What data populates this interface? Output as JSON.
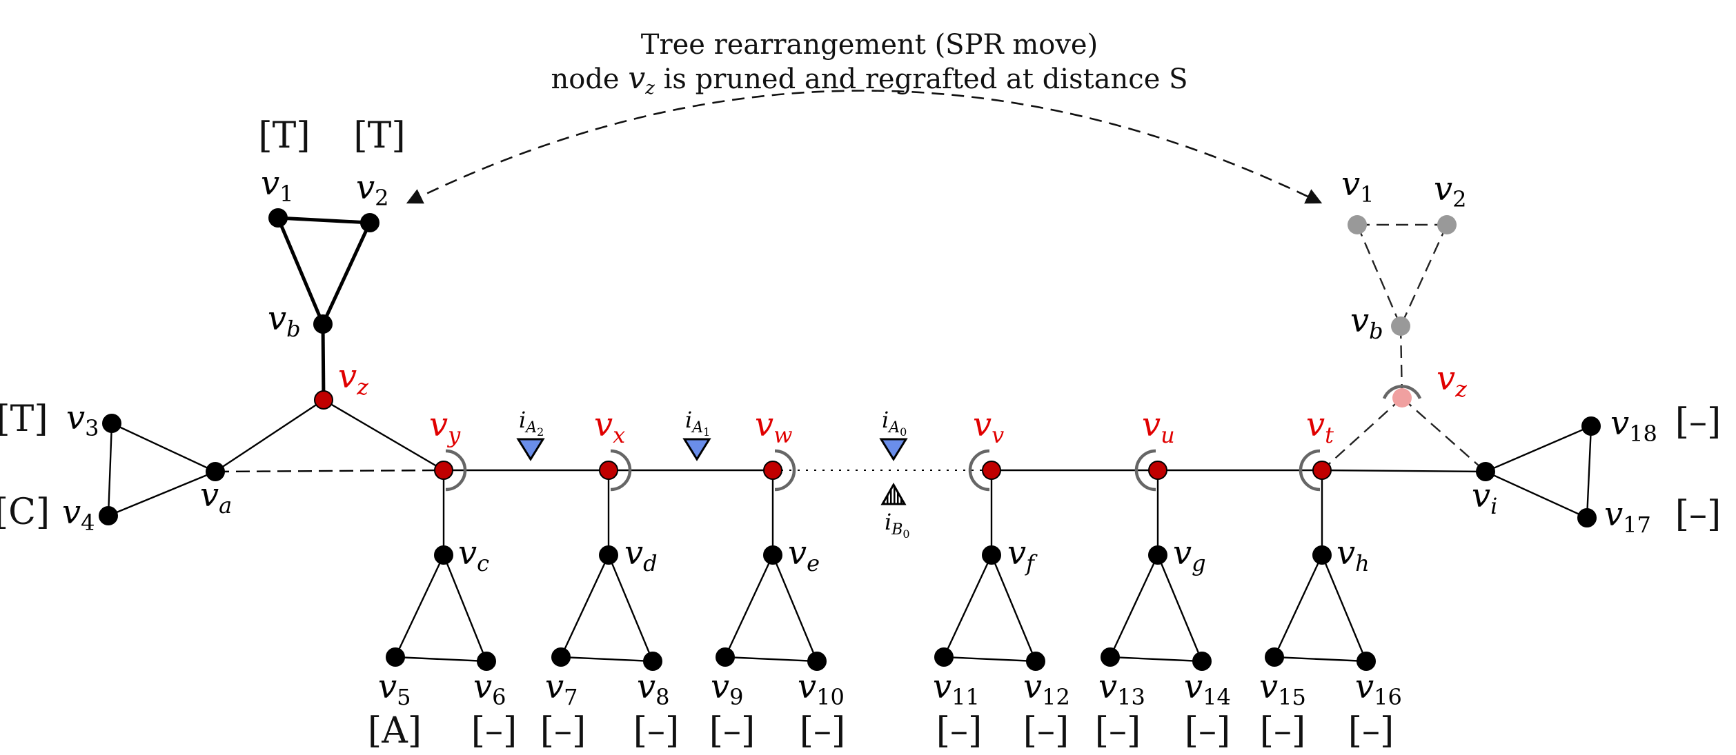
{
  "title": {
    "line1": "Tree rearrangement (SPR move)",
    "line2_pre": "node ",
    "line2_var": "v",
    "line2_sub": "z",
    "line2_post": " is pruned and regrafted at distance S"
  },
  "colors": {
    "black_node": "#000000",
    "red_node": "#c00000",
    "red_label": "#e00000",
    "gray_node": "#999999",
    "pink_node": "#f0a0a0",
    "blue_marker": "#6a8eea",
    "arc_gray": "#666666"
  },
  "nodes": [
    {
      "id": "v1",
      "base": "v",
      "sub": "1"
    },
    {
      "id": "v2",
      "base": "v",
      "sub": "2"
    },
    {
      "id": "vb",
      "base": "v",
      "sub": "b"
    },
    {
      "id": "vz",
      "base": "v",
      "sub": "z"
    },
    {
      "id": "v3",
      "base": "v",
      "sub": "3"
    },
    {
      "id": "v4",
      "base": "v",
      "sub": "4"
    },
    {
      "id": "va",
      "base": "v",
      "sub": "a"
    },
    {
      "id": "vy",
      "base": "v",
      "sub": "y"
    },
    {
      "id": "vx",
      "base": "v",
      "sub": "x"
    },
    {
      "id": "vw",
      "base": "v",
      "sub": "w"
    },
    {
      "id": "vv",
      "base": "v",
      "sub": "v"
    },
    {
      "id": "vu",
      "base": "v",
      "sub": "u"
    },
    {
      "id": "vt",
      "base": "v",
      "sub": "t"
    },
    {
      "id": "vi",
      "base": "v",
      "sub": "i"
    },
    {
      "id": "vc",
      "base": "v",
      "sub": "c"
    },
    {
      "id": "vd",
      "base": "v",
      "sub": "d"
    },
    {
      "id": "ve",
      "base": "v",
      "sub": "e"
    },
    {
      "id": "vf",
      "base": "v",
      "sub": "f"
    },
    {
      "id": "vg",
      "base": "v",
      "sub": "g"
    },
    {
      "id": "vh",
      "base": "v",
      "sub": "h"
    },
    {
      "id": "v5",
      "base": "v",
      "sub": "5"
    },
    {
      "id": "v6",
      "base": "v",
      "sub": "6"
    },
    {
      "id": "v7",
      "base": "v",
      "sub": "7"
    },
    {
      "id": "v8",
      "base": "v",
      "sub": "8"
    },
    {
      "id": "v9",
      "base": "v",
      "sub": "9"
    },
    {
      "id": "v10",
      "base": "v",
      "sub": "10"
    },
    {
      "id": "v11",
      "base": "v",
      "sub": "11"
    },
    {
      "id": "v12",
      "base": "v",
      "sub": "12"
    },
    {
      "id": "v13",
      "base": "v",
      "sub": "13"
    },
    {
      "id": "v14",
      "base": "v",
      "sub": "14"
    },
    {
      "id": "v15",
      "base": "v",
      "sub": "15"
    },
    {
      "id": "v16",
      "base": "v",
      "sub": "16"
    },
    {
      "id": "v17",
      "base": "v",
      "sub": "17"
    },
    {
      "id": "v18",
      "base": "v",
      "sub": "18"
    },
    {
      "id": "r_v1",
      "base": "v",
      "sub": "1"
    },
    {
      "id": "r_v2",
      "base": "v",
      "sub": "2"
    },
    {
      "id": "r_vb",
      "base": "v",
      "sub": "b"
    },
    {
      "id": "r_vz",
      "base": "v",
      "sub": "z"
    }
  ],
  "state_tags": {
    "v1": "[T]",
    "v2": "[T]",
    "v3": "[T]",
    "v4": "[C]",
    "v5": "[A]",
    "v6": "[–]",
    "v7": "[–]",
    "v8": "[–]",
    "v9": "[–]",
    "v10": "[–]",
    "v11": "[–]",
    "v12": "[–]",
    "v13": "[–]",
    "v14": "[–]",
    "v15": "[–]",
    "v16": "[–]",
    "v17": "[–]",
    "v18": "[–]"
  },
  "markers": [
    {
      "id": "iA2",
      "base": "i",
      "sub": "A",
      "subsub": "2",
      "kind": "blue-triangle"
    },
    {
      "id": "iA1",
      "base": "i",
      "sub": "A",
      "subsub": "1",
      "kind": "blue-triangle"
    },
    {
      "id": "iA0",
      "base": "i",
      "sub": "A",
      "subsub": "0",
      "kind": "blue-triangle"
    },
    {
      "id": "iB0",
      "base": "i",
      "sub": "B",
      "subsub": "0",
      "kind": "hatched-triangle"
    }
  ]
}
